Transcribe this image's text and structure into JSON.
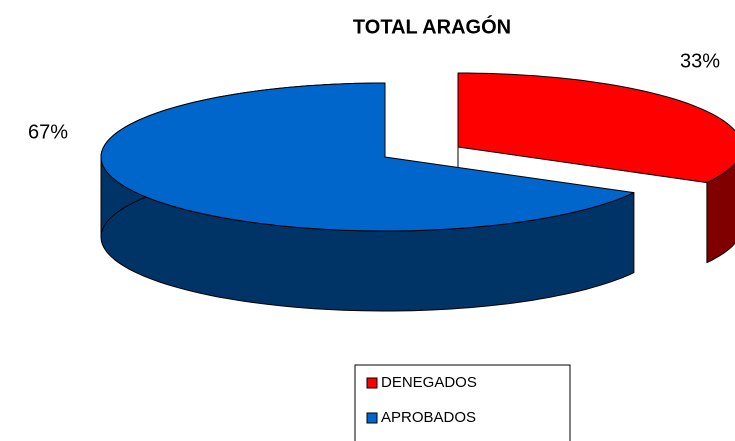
{
  "chart_data": {
    "type": "pie3d",
    "title": "TOTAL ARAGÓN",
    "categories": [
      "DENEGADOS",
      "APROBADOS"
    ],
    "values": [
      33,
      67
    ],
    "value_labels": [
      "33%",
      "67%"
    ],
    "colors": [
      "#ff0000",
      "#0066cc"
    ],
    "exploded": [
      true,
      false
    ],
    "legend": "bottom"
  }
}
